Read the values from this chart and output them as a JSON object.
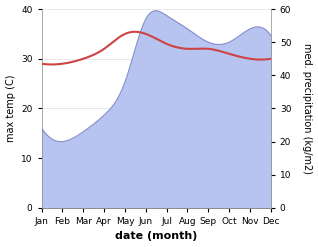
{
  "months": [
    "Jan",
    "Feb",
    "Mar",
    "Apr",
    "May",
    "Jun",
    "Jul",
    "Aug",
    "Sep",
    "Oct",
    "Nov",
    "Dec"
  ],
  "temperature": [
    29,
    29,
    30,
    32,
    35,
    35,
    33,
    32,
    32,
    31,
    30,
    30
  ],
  "precipitation": [
    24,
    20,
    23,
    28,
    38,
    57,
    58,
    54,
    50,
    50,
    54,
    52
  ],
  "temp_color": "#cc4444",
  "precip_fill_color": "#b8c4f0",
  "precip_edge_color": "#8890cc",
  "ylim_left": [
    0,
    40
  ],
  "ylim_right": [
    0,
    60
  ],
  "ylabel_left": "max temp (C)",
  "ylabel_right": "med. precipitation (kg/m2)",
  "xlabel": "date (month)",
  "bg_color": "#ffffff",
  "fig_bg_color": "#ffffff",
  "yticks_left": [
    0,
    10,
    20,
    30,
    40
  ],
  "yticks_right": [
    0,
    10,
    20,
    30,
    40,
    50,
    60
  ]
}
